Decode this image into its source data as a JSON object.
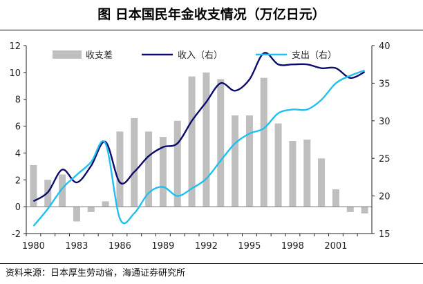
{
  "title": "图   日本国民年金收支情况（万亿日元）",
  "source": "资料来源：日本厚生劳动省，海通证券研究所",
  "chart_data": {
    "type": "bar+line",
    "x": [
      1980,
      1981,
      1982,
      1983,
      1984,
      1985,
      1986,
      1987,
      1988,
      1989,
      1990,
      1991,
      1992,
      1993,
      1994,
      1995,
      1996,
      1997,
      1998,
      1999,
      2000,
      2001,
      2002,
      2003
    ],
    "x_tick_labels": [
      "1980",
      "1983",
      "1986",
      "1989",
      "1992",
      "1995",
      "1998",
      "2001"
    ],
    "y_left": {
      "range": [
        -2,
        12
      ],
      "ticks": [
        -2,
        0,
        2,
        4,
        6,
        8,
        10,
        12
      ]
    },
    "y_right": {
      "range": [
        15,
        40
      ],
      "ticks": [
        15,
        20,
        25,
        30,
        35,
        40
      ]
    },
    "legend_position": "top",
    "series": [
      {
        "name": "收支差",
        "type": "bar",
        "axis": "left",
        "color": "#bfbfbf",
        "values": [
          3.1,
          2.0,
          2.4,
          -1.1,
          -0.4,
          0.4,
          5.6,
          6.6,
          5.6,
          5.2,
          6.4,
          9.7,
          10.0,
          9.5,
          6.8,
          6.8,
          9.6,
          6.2,
          4.9,
          5.0,
          3.6,
          1.3,
          -0.4,
          -0.5
        ]
      },
      {
        "name": "收入（右）",
        "type": "line",
        "axis": "right",
        "color": "#0b0b6e",
        "values": [
          19.3,
          20.5,
          23.5,
          21.8,
          24.0,
          27.2,
          21.8,
          23.2,
          25.3,
          26.5,
          27.0,
          30.0,
          32.5,
          35.0,
          34.0,
          35.5,
          39.0,
          37.5,
          37.5,
          37.5,
          37.0,
          37.0,
          35.7,
          36.5
        ]
      },
      {
        "name": "支出（右）",
        "type": "line",
        "axis": "right",
        "color": "#1ec0f0",
        "values": [
          16.0,
          18.3,
          21.0,
          22.8,
          24.5,
          27.0,
          17.0,
          17.7,
          20.4,
          21.2,
          20.0,
          21.0,
          22.3,
          24.7,
          27.0,
          28.3,
          29.0,
          31.0,
          31.5,
          31.5,
          32.8,
          35.0,
          36.0,
          36.7
        ]
      }
    ]
  }
}
